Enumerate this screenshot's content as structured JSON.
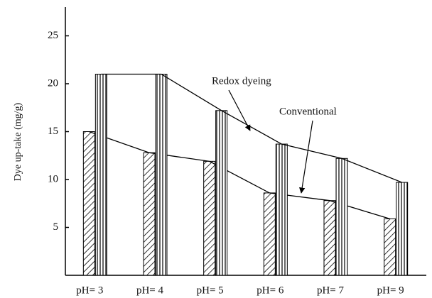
{
  "chart_data": {
    "type": "bar",
    "y_label": "Dye up-take (mg/g)",
    "categories": [
      "pH= 3",
      "pH= 4",
      "pH= 5",
      "pH= 6",
      "pH= 7",
      "pH= 9"
    ],
    "series": [
      {
        "name": "Conventional",
        "color": "#000000",
        "pattern": "hatch",
        "values": [
          15.0,
          12.8,
          11.9,
          8.6,
          7.8,
          5.9
        ]
      },
      {
        "name": "Redox dyeing",
        "color": "#000000",
        "pattern": "stripes",
        "values": [
          21.0,
          21.0,
          17.2,
          13.7,
          12.2,
          9.7
        ]
      }
    ],
    "ylim": [
      0,
      28
    ],
    "yticks": [
      5,
      10,
      15,
      20,
      25
    ]
  }
}
